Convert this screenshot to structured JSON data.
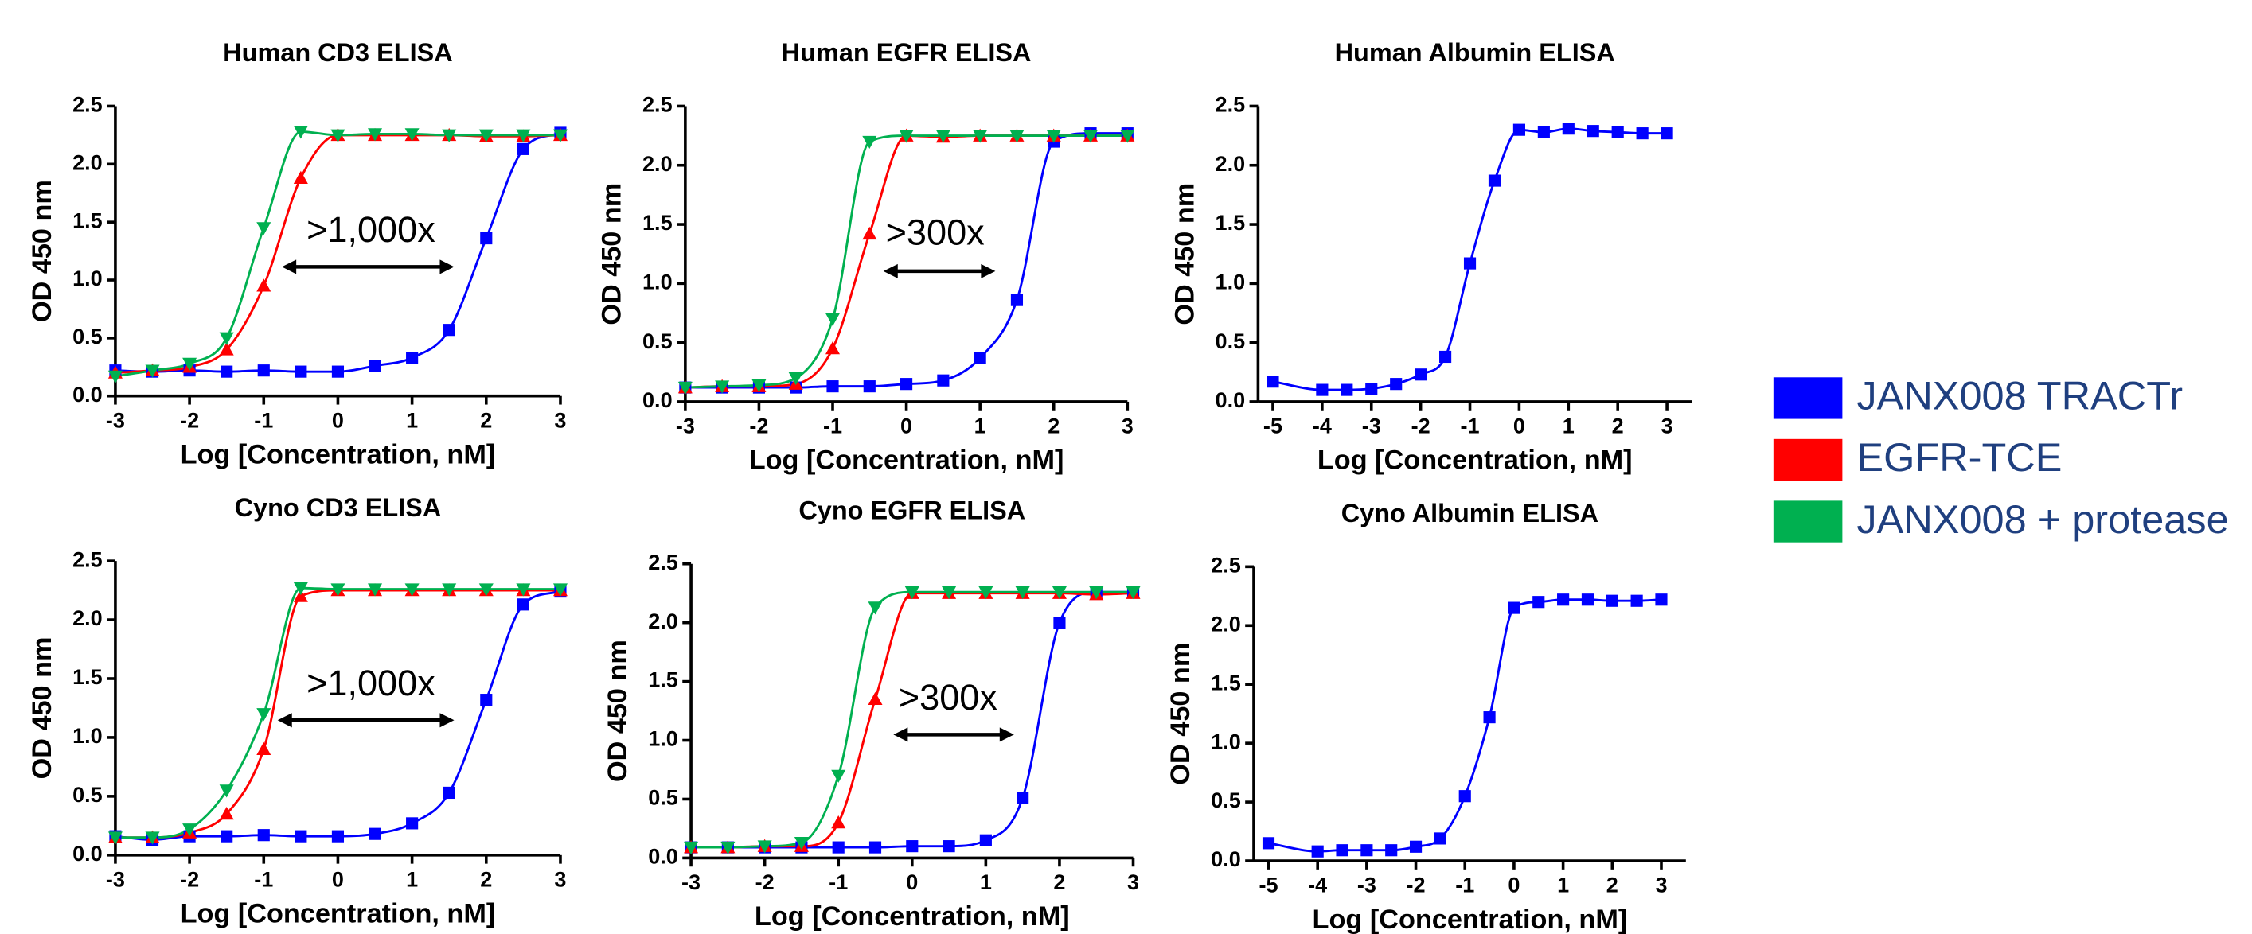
{
  "chart_data": [
    {
      "type": "scatter",
      "title": "Human CD3 ELISA",
      "x_label": "Log [Concentration, nM]",
      "y_label": "OD 450 nm",
      "annotation": ">1,000x",
      "x": [
        -3,
        -2.5,
        -2,
        -1.5,
        -1,
        -0.5,
        0,
        0.5,
        1,
        1.5,
        2,
        2.5,
        3
      ],
      "series": [
        {
          "name": "JANX008 TRACTr",
          "color": "#0000ff",
          "marker": "square",
          "values": [
            0.22,
            0.21,
            0.22,
            0.21,
            0.22,
            0.21,
            0.21,
            0.26,
            0.33,
            0.57,
            1.36,
            2.13,
            2.27
          ]
        },
        {
          "name": "EGFR-TCE",
          "color": "#ff0000",
          "marker": "triangle-up",
          "values": [
            0.2,
            0.22,
            0.25,
            0.4,
            0.95,
            1.88,
            2.25,
            2.25,
            2.25,
            2.25,
            2.24,
            2.24,
            2.25
          ]
        },
        {
          "name": "JANX008 + protease",
          "color": "#00b050",
          "marker": "triangle-down",
          "values": [
            0.17,
            0.22,
            0.28,
            0.5,
            1.45,
            2.28,
            2.25,
            2.26,
            2.26,
            2.25,
            2.25,
            2.25,
            2.25
          ]
        }
      ],
      "xlim": [
        -3,
        3
      ],
      "ylim": [
        0,
        2.5
      ],
      "xticks": [
        -3,
        -2,
        -1,
        0,
        1,
        2,
        3
      ],
      "yticks": [
        {
          "value": 0,
          "label": "0.0"
        },
        0.5,
        {
          "value": 1,
          "label": "1.0"
        },
        1.5,
        {
          "value": 2,
          "label": "2.0"
        },
        2.5
      ]
    },
    {
      "type": "scatter",
      "title": "Human EGFR ELISA",
      "x_label": "Log [Concentration, nM]",
      "y_label": "OD 450 nm",
      "annotation": ">300x",
      "x": [
        -3,
        -2.5,
        -2,
        -1.5,
        -1,
        -0.5,
        0,
        0.5,
        1,
        1.5,
        2,
        2.5,
        3
      ],
      "series": [
        {
          "name": "JANX008 TRACTr",
          "color": "#0000ff",
          "marker": "square",
          "values": [
            0.12,
            0.12,
            0.12,
            0.12,
            0.13,
            0.13,
            0.15,
            0.18,
            0.37,
            0.86,
            2.2,
            2.27,
            2.27
          ]
        },
        {
          "name": "EGFR-TCE",
          "color": "#ff0000",
          "marker": "triangle-up",
          "values": [
            0.12,
            0.13,
            0.13,
            0.15,
            0.45,
            1.42,
            2.25,
            2.24,
            2.25,
            2.25,
            2.25,
            2.25,
            2.25
          ]
        },
        {
          "name": "JANX008 + protease",
          "color": "#00b050",
          "marker": "triangle-down",
          "values": [
            0.12,
            0.13,
            0.14,
            0.2,
            0.7,
            2.2,
            2.25,
            2.25,
            2.25,
            2.25,
            2.25,
            2.25,
            2.25
          ]
        }
      ],
      "xlim": [
        -3,
        3
      ],
      "ylim": [
        0,
        2.5
      ],
      "xticks": [
        -3,
        -2,
        -1,
        0,
        1,
        2,
        3
      ],
      "yticks": [
        {
          "value": 0,
          "label": "0.0"
        },
        0.5,
        {
          "value": 1,
          "label": "1.0"
        },
        1.5,
        {
          "value": 2,
          "label": "2.0"
        },
        2.5
      ]
    },
    {
      "type": "scatter",
      "title": "Human Albumin ELISA",
      "x_label": "Log [Concentration, nM]",
      "y_label": "OD 450 nm",
      "x": [
        -5,
        -4,
        -3.5,
        -3,
        -2.5,
        -2,
        -1.5,
        -1,
        -0.5,
        0,
        0.5,
        1,
        1.5,
        2,
        2.5,
        3
      ],
      "series": [
        {
          "name": "JANX008 TRACTr",
          "color": "#0000ff",
          "marker": "square",
          "values": [
            0.17,
            0.1,
            0.1,
            0.11,
            0.15,
            0.23,
            0.38,
            1.17,
            1.87,
            2.3,
            2.28,
            2.31,
            2.29,
            2.28,
            2.27,
            2.27
          ]
        }
      ],
      "xlim": [
        -5.3,
        3.5
      ],
      "ylim": [
        0,
        2.5
      ],
      "xticks": [
        -5,
        -4,
        -3,
        -2,
        -1,
        0,
        1,
        2,
        3
      ],
      "yticks": [
        {
          "value": 0,
          "label": "0.0"
        },
        0.5,
        {
          "value": 1,
          "label": "1.0"
        },
        1.5,
        {
          "value": 2,
          "label": "2.0"
        },
        2.5
      ]
    },
    {
      "type": "scatter",
      "title": "Cyno CD3 ELISA",
      "x_label": "Log [Concentration, nM]",
      "y_label": "OD 450 nm",
      "annotation": ">1,000x",
      "x": [
        -3,
        -2.5,
        -2,
        -1.5,
        -1,
        -0.5,
        0,
        0.5,
        1,
        1.5,
        2,
        2.5,
        3
      ],
      "series": [
        {
          "name": "JANX008 TRACTr",
          "color": "#0000ff",
          "marker": "square",
          "values": [
            0.16,
            0.13,
            0.16,
            0.16,
            0.17,
            0.16,
            0.16,
            0.18,
            0.27,
            0.53,
            1.32,
            2.13,
            2.24
          ]
        },
        {
          "name": "EGFR-TCE",
          "color": "#ff0000",
          "marker": "triangle-up",
          "values": [
            0.15,
            0.15,
            0.19,
            0.35,
            0.9,
            2.2,
            2.25,
            2.25,
            2.25,
            2.25,
            2.25,
            2.25,
            2.25
          ]
        },
        {
          "name": "JANX008 + protease",
          "color": "#00b050",
          "marker": "triangle-down",
          "values": [
            0.15,
            0.15,
            0.22,
            0.55,
            1.2,
            2.27,
            2.26,
            2.26,
            2.26,
            2.26,
            2.26,
            2.26,
            2.26
          ]
        }
      ],
      "xlim": [
        -3,
        3
      ],
      "ylim": [
        0,
        2.5
      ],
      "xticks": [
        -3,
        -2,
        -1,
        0,
        1,
        2,
        3
      ],
      "yticks": [
        {
          "value": 0,
          "label": "0.0"
        },
        0.5,
        {
          "value": 1,
          "label": "1.0"
        },
        1.5,
        {
          "value": 2,
          "label": "2.0"
        },
        2.5
      ]
    },
    {
      "type": "scatter",
      "title": "Cyno EGFR ELISA",
      "x_label": "Log [Concentration, nM]",
      "y_label": "OD 450 nm",
      "annotation": ">300x",
      "x": [
        -3,
        -2.5,
        -2,
        -1.5,
        -1,
        -0.5,
        0,
        0.5,
        1,
        1.5,
        2,
        2.5,
        3
      ],
      "series": [
        {
          "name": "JANX008 TRACTr",
          "color": "#0000ff",
          "marker": "square",
          "values": [
            0.09,
            0.09,
            0.09,
            0.09,
            0.09,
            0.09,
            0.1,
            0.1,
            0.15,
            0.51,
            2.0,
            2.26,
            2.26
          ]
        },
        {
          "name": "EGFR-TCE",
          "color": "#ff0000",
          "marker": "triangle-up",
          "values": [
            0.09,
            0.09,
            0.1,
            0.1,
            0.3,
            1.35,
            2.25,
            2.25,
            2.25,
            2.25,
            2.25,
            2.24,
            2.25
          ]
        },
        {
          "name": "JANX008 + protease",
          "color": "#00b050",
          "marker": "triangle-down",
          "values": [
            0.09,
            0.09,
            0.1,
            0.13,
            0.7,
            2.13,
            2.26,
            2.26,
            2.26,
            2.26,
            2.26,
            2.26,
            2.26
          ]
        }
      ],
      "xlim": [
        -3,
        3
      ],
      "ylim": [
        0,
        2.5
      ],
      "xticks": [
        -3,
        -2,
        -1,
        0,
        1,
        2,
        3
      ],
      "yticks": [
        {
          "value": 0,
          "label": "0.0"
        },
        0.5,
        {
          "value": 1,
          "label": "1.0"
        },
        1.5,
        {
          "value": 2,
          "label": "2.0"
        },
        2.5
      ]
    },
    {
      "type": "scatter",
      "title": "Cyno Albumin ELISA",
      "x_label": "Log [Concentration, nM]",
      "y_label": "OD 450 nm",
      "x": [
        -5,
        -4,
        -3.5,
        -3,
        -2.5,
        -2,
        -1.5,
        -1,
        -0.5,
        0,
        0.5,
        1,
        1.5,
        2,
        2.5,
        3
      ],
      "series": [
        {
          "name": "JANX008 TRACTr",
          "color": "#0000ff",
          "marker": "square",
          "values": [
            0.15,
            0.08,
            0.09,
            0.09,
            0.09,
            0.12,
            0.19,
            0.55,
            1.22,
            2.15,
            2.2,
            2.22,
            2.22,
            2.21,
            2.21,
            2.22
          ]
        }
      ],
      "xlim": [
        -5.3,
        3.5
      ],
      "ylim": [
        0,
        2.5
      ],
      "xticks": [
        -5,
        -4,
        -3,
        -2,
        -1,
        0,
        1,
        2,
        3
      ],
      "yticks": [
        {
          "value": 0,
          "label": "0.0"
        },
        0.5,
        {
          "value": 1,
          "label": "1.0"
        },
        1.5,
        {
          "value": 2,
          "label": "2.0"
        },
        2.5
      ]
    }
  ]
}
